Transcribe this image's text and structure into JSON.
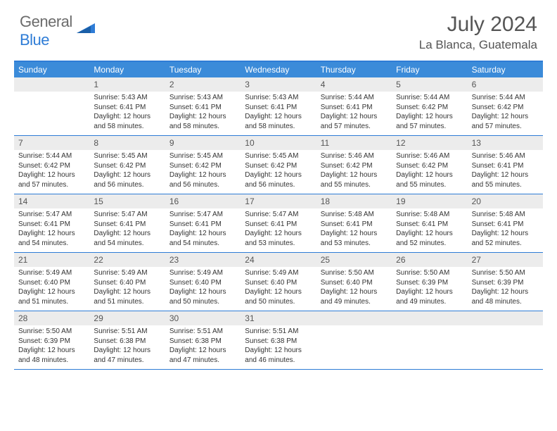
{
  "logo": {
    "text1": "General",
    "text2": "Blue"
  },
  "title": "July 2024",
  "location": "La Blanca, Guatemala",
  "colors": {
    "header_bg": "#3b8bd9",
    "border": "#2e7cd6",
    "num_bg": "#ececec",
    "text": "#333333",
    "muted": "#555555"
  },
  "days": [
    "Sunday",
    "Monday",
    "Tuesday",
    "Wednesday",
    "Thursday",
    "Friday",
    "Saturday"
  ],
  "weeks": [
    [
      {
        "num": "",
        "lines": []
      },
      {
        "num": "1",
        "lines": [
          "Sunrise: 5:43 AM",
          "Sunset: 6:41 PM",
          "Daylight: 12 hours",
          "and 58 minutes."
        ]
      },
      {
        "num": "2",
        "lines": [
          "Sunrise: 5:43 AM",
          "Sunset: 6:41 PM",
          "Daylight: 12 hours",
          "and 58 minutes."
        ]
      },
      {
        "num": "3",
        "lines": [
          "Sunrise: 5:43 AM",
          "Sunset: 6:41 PM",
          "Daylight: 12 hours",
          "and 58 minutes."
        ]
      },
      {
        "num": "4",
        "lines": [
          "Sunrise: 5:44 AM",
          "Sunset: 6:41 PM",
          "Daylight: 12 hours",
          "and 57 minutes."
        ]
      },
      {
        "num": "5",
        "lines": [
          "Sunrise: 5:44 AM",
          "Sunset: 6:42 PM",
          "Daylight: 12 hours",
          "and 57 minutes."
        ]
      },
      {
        "num": "6",
        "lines": [
          "Sunrise: 5:44 AM",
          "Sunset: 6:42 PM",
          "Daylight: 12 hours",
          "and 57 minutes."
        ]
      }
    ],
    [
      {
        "num": "7",
        "lines": [
          "Sunrise: 5:44 AM",
          "Sunset: 6:42 PM",
          "Daylight: 12 hours",
          "and 57 minutes."
        ]
      },
      {
        "num": "8",
        "lines": [
          "Sunrise: 5:45 AM",
          "Sunset: 6:42 PM",
          "Daylight: 12 hours",
          "and 56 minutes."
        ]
      },
      {
        "num": "9",
        "lines": [
          "Sunrise: 5:45 AM",
          "Sunset: 6:42 PM",
          "Daylight: 12 hours",
          "and 56 minutes."
        ]
      },
      {
        "num": "10",
        "lines": [
          "Sunrise: 5:45 AM",
          "Sunset: 6:42 PM",
          "Daylight: 12 hours",
          "and 56 minutes."
        ]
      },
      {
        "num": "11",
        "lines": [
          "Sunrise: 5:46 AM",
          "Sunset: 6:42 PM",
          "Daylight: 12 hours",
          "and 55 minutes."
        ]
      },
      {
        "num": "12",
        "lines": [
          "Sunrise: 5:46 AM",
          "Sunset: 6:42 PM",
          "Daylight: 12 hours",
          "and 55 minutes."
        ]
      },
      {
        "num": "13",
        "lines": [
          "Sunrise: 5:46 AM",
          "Sunset: 6:41 PM",
          "Daylight: 12 hours",
          "and 55 minutes."
        ]
      }
    ],
    [
      {
        "num": "14",
        "lines": [
          "Sunrise: 5:47 AM",
          "Sunset: 6:41 PM",
          "Daylight: 12 hours",
          "and 54 minutes."
        ]
      },
      {
        "num": "15",
        "lines": [
          "Sunrise: 5:47 AM",
          "Sunset: 6:41 PM",
          "Daylight: 12 hours",
          "and 54 minutes."
        ]
      },
      {
        "num": "16",
        "lines": [
          "Sunrise: 5:47 AM",
          "Sunset: 6:41 PM",
          "Daylight: 12 hours",
          "and 54 minutes."
        ]
      },
      {
        "num": "17",
        "lines": [
          "Sunrise: 5:47 AM",
          "Sunset: 6:41 PM",
          "Daylight: 12 hours",
          "and 53 minutes."
        ]
      },
      {
        "num": "18",
        "lines": [
          "Sunrise: 5:48 AM",
          "Sunset: 6:41 PM",
          "Daylight: 12 hours",
          "and 53 minutes."
        ]
      },
      {
        "num": "19",
        "lines": [
          "Sunrise: 5:48 AM",
          "Sunset: 6:41 PM",
          "Daylight: 12 hours",
          "and 52 minutes."
        ]
      },
      {
        "num": "20",
        "lines": [
          "Sunrise: 5:48 AM",
          "Sunset: 6:41 PM",
          "Daylight: 12 hours",
          "and 52 minutes."
        ]
      }
    ],
    [
      {
        "num": "21",
        "lines": [
          "Sunrise: 5:49 AM",
          "Sunset: 6:40 PM",
          "Daylight: 12 hours",
          "and 51 minutes."
        ]
      },
      {
        "num": "22",
        "lines": [
          "Sunrise: 5:49 AM",
          "Sunset: 6:40 PM",
          "Daylight: 12 hours",
          "and 51 minutes."
        ]
      },
      {
        "num": "23",
        "lines": [
          "Sunrise: 5:49 AM",
          "Sunset: 6:40 PM",
          "Daylight: 12 hours",
          "and 50 minutes."
        ]
      },
      {
        "num": "24",
        "lines": [
          "Sunrise: 5:49 AM",
          "Sunset: 6:40 PM",
          "Daylight: 12 hours",
          "and 50 minutes."
        ]
      },
      {
        "num": "25",
        "lines": [
          "Sunrise: 5:50 AM",
          "Sunset: 6:40 PM",
          "Daylight: 12 hours",
          "and 49 minutes."
        ]
      },
      {
        "num": "26",
        "lines": [
          "Sunrise: 5:50 AM",
          "Sunset: 6:39 PM",
          "Daylight: 12 hours",
          "and 49 minutes."
        ]
      },
      {
        "num": "27",
        "lines": [
          "Sunrise: 5:50 AM",
          "Sunset: 6:39 PM",
          "Daylight: 12 hours",
          "and 48 minutes."
        ]
      }
    ],
    [
      {
        "num": "28",
        "lines": [
          "Sunrise: 5:50 AM",
          "Sunset: 6:39 PM",
          "Daylight: 12 hours",
          "and 48 minutes."
        ]
      },
      {
        "num": "29",
        "lines": [
          "Sunrise: 5:51 AM",
          "Sunset: 6:38 PM",
          "Daylight: 12 hours",
          "and 47 minutes."
        ]
      },
      {
        "num": "30",
        "lines": [
          "Sunrise: 5:51 AM",
          "Sunset: 6:38 PM",
          "Daylight: 12 hours",
          "and 47 minutes."
        ]
      },
      {
        "num": "31",
        "lines": [
          "Sunrise: 5:51 AM",
          "Sunset: 6:38 PM",
          "Daylight: 12 hours",
          "and 46 minutes."
        ]
      },
      {
        "num": "",
        "lines": []
      },
      {
        "num": "",
        "lines": []
      },
      {
        "num": "",
        "lines": []
      }
    ]
  ]
}
